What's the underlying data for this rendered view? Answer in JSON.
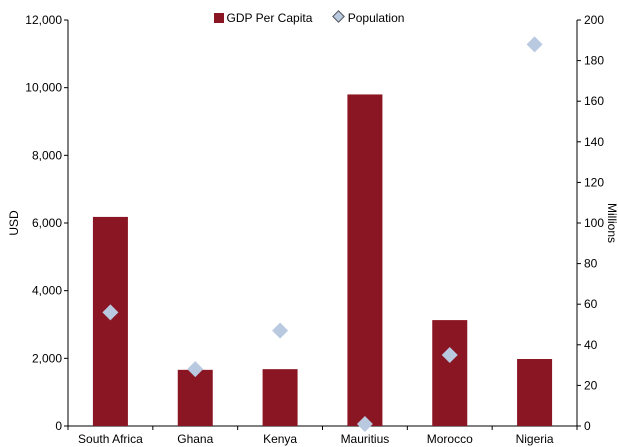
{
  "chart_data": {
    "type": "bar",
    "categories": [
      "South Africa",
      "Ghana",
      "Kenya",
      "Mauritius",
      "Morocco",
      "Nigeria"
    ],
    "series": [
      {
        "name": "GDP Per Capita",
        "kind": "bar",
        "axis": "left",
        "color": "#8B1623",
        "values": [
          6180,
          1660,
          1680,
          9800,
          3130,
          1980
        ]
      },
      {
        "name": "Population",
        "kind": "scatter",
        "marker": "diamond",
        "axis": "right",
        "color": "#B8C9E0",
        "values": [
          56,
          28,
          47,
          1,
          35,
          188
        ]
      }
    ],
    "ylabel": "USD",
    "y2label": "Millions",
    "ylim": [
      0,
      12000
    ],
    "y2lim": [
      0,
      200
    ],
    "yticks": [
      "0",
      "2,000",
      "4,000",
      "6,000",
      "8,000",
      "10,000",
      "12,000"
    ],
    "y2ticks": [
      "0",
      "20",
      "40",
      "60",
      "80",
      "100",
      "120",
      "140",
      "160",
      "180",
      "200"
    ],
    "legend_position": "top"
  }
}
